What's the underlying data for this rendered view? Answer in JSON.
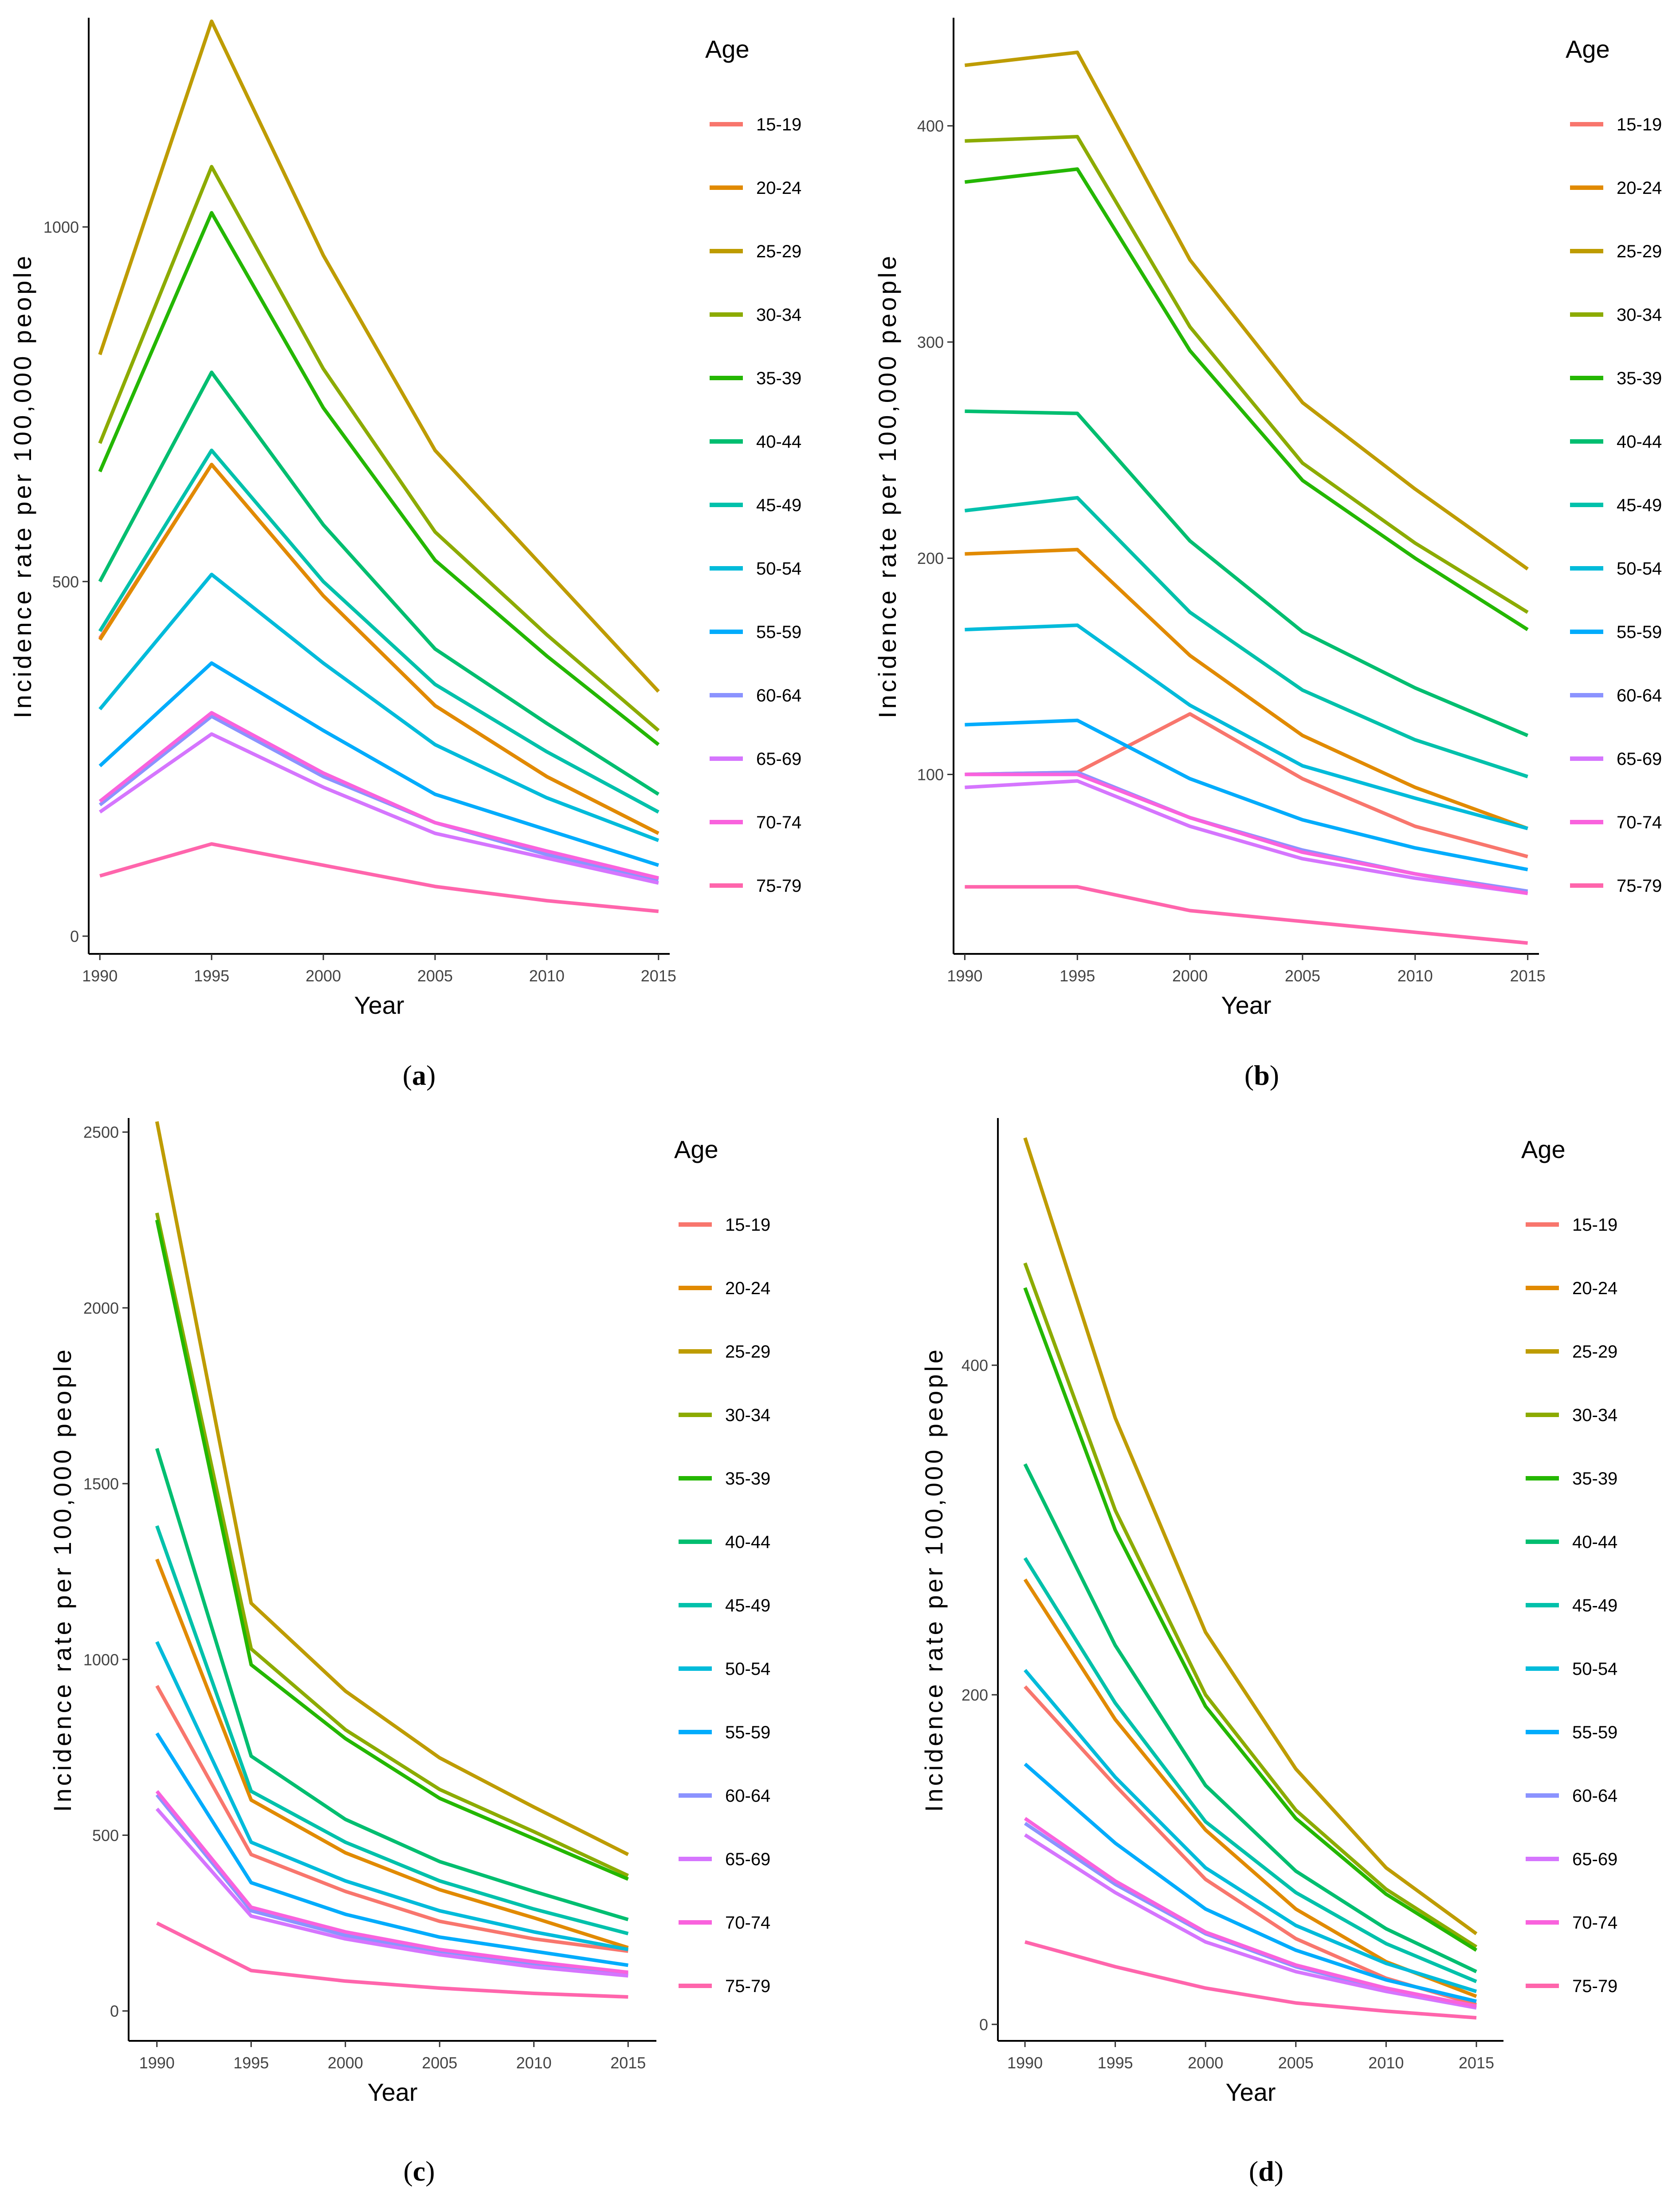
{
  "chart_data": [
    {
      "type": "line",
      "panel_label": "a",
      "xlabel": "Year",
      "ylabel": "Incidence rate per 100,000 people",
      "legend_title": "Age",
      "x": [
        1990,
        1995,
        2000,
        2005,
        2010,
        2015
      ],
      "x_ticks": [
        1990,
        1995,
        2000,
        2005,
        2010,
        2015
      ],
      "y_ticks": [
        0,
        500,
        1000
      ],
      "xlim": [
        1989.5,
        2015.5
      ],
      "ylim": [
        -25,
        1295
      ],
      "series": [
        {
          "name": "15-19",
          "values": [
            420,
            665,
            480,
            325,
            225,
            145
          ]
        },
        {
          "name": "20-24",
          "values": [
            418,
            665,
            480,
            325,
            225,
            145
          ]
        },
        {
          "name": "25-29",
          "values": [
            820,
            1290,
            960,
            685,
            515,
            345
          ]
        },
        {
          "name": "30-34",
          "values": [
            695,
            1085,
            800,
            570,
            425,
            290
          ]
        },
        {
          "name": "35-39",
          "values": [
            655,
            1020,
            745,
            530,
            395,
            270
          ]
        },
        {
          "name": "40-44",
          "values": [
            500,
            795,
            580,
            405,
            300,
            200
          ]
        },
        {
          "name": "45-49",
          "values": [
            430,
            685,
            500,
            355,
            260,
            175
          ]
        },
        {
          "name": "50-54",
          "values": [
            320,
            510,
            385,
            270,
            195,
            135
          ]
        },
        {
          "name": "55-59",
          "values": [
            240,
            385,
            290,
            200,
            150,
            100
          ]
        },
        {
          "name": "60-64",
          "values": [
            185,
            310,
            225,
            160,
            115,
            80
          ]
        },
        {
          "name": "65-69",
          "values": [
            175,
            285,
            210,
            145,
            110,
            75
          ]
        },
        {
          "name": "70-74",
          "values": [
            190,
            315,
            230,
            160,
            120,
            82
          ]
        },
        {
          "name": "75-79",
          "values": [
            85,
            130,
            100,
            70,
            50,
            35
          ]
        }
      ]
    },
    {
      "type": "line",
      "panel_label": "b",
      "xlabel": "Year",
      "ylabel": "Incidence rate per 100,000 people",
      "legend_title": "Age",
      "x": [
        1990,
        1995,
        2000,
        2005,
        2010,
        2015
      ],
      "x_ticks": [
        1990,
        1995,
        2000,
        2005,
        2010,
        2015
      ],
      "y_ticks": [
        100,
        200,
        300,
        400
      ],
      "xlim": [
        1989.5,
        2015.5
      ],
      "ylim": [
        17,
        450
      ],
      "series": [
        {
          "name": "15-19",
          "values": [
            100,
            101,
            128,
            98,
            76,
            62
          ]
        },
        {
          "name": "20-24",
          "values": [
            202,
            204,
            155,
            118,
            94,
            75
          ]
        },
        {
          "name": "25-29",
          "values": [
            428,
            434,
            338,
            272,
            232,
            195
          ]
        },
        {
          "name": "30-34",
          "values": [
            393,
            395,
            307,
            244,
            207,
            175
          ]
        },
        {
          "name": "35-39",
          "values": [
            374,
            380,
            296,
            236,
            200,
            167
          ]
        },
        {
          "name": "40-44",
          "values": [
            268,
            267,
            208,
            166,
            140,
            118
          ]
        },
        {
          "name": "45-49",
          "values": [
            222,
            228,
            175,
            139,
            116,
            99
          ]
        },
        {
          "name": "50-54",
          "values": [
            167,
            169,
            132,
            104,
            89,
            75
          ]
        },
        {
          "name": "55-59",
          "values": [
            123,
            125,
            98,
            79,
            66,
            56
          ]
        },
        {
          "name": "60-64",
          "values": [
            100,
            101,
            80,
            65,
            54,
            46
          ]
        },
        {
          "name": "65-69",
          "values": [
            94,
            97,
            76,
            61,
            52,
            45
          ]
        },
        {
          "name": "70-74",
          "values": [
            100,
            100,
            80,
            64,
            54,
            45
          ]
        },
        {
          "name": "75-79",
          "values": [
            48,
            48,
            37,
            32,
            27,
            22
          ]
        }
      ]
    },
    {
      "type": "line",
      "panel_label": "c",
      "xlabel": "Year",
      "ylabel": "Incidence rate per 100,000 people",
      "legend_title": "Age",
      "x": [
        1990,
        1995,
        2000,
        2005,
        2010,
        2015
      ],
      "x_ticks": [
        1990,
        1995,
        2000,
        2005,
        2010,
        2015
      ],
      "y_ticks": [
        0,
        500,
        1000,
        1500,
        2000,
        2500
      ],
      "xlim": [
        1988.5,
        2016.5
      ],
      "ylim": [
        -85,
        2540
      ],
      "series": [
        {
          "name": "15-19",
          "values": [
            925,
            445,
            340,
            255,
            205,
            170
          ]
        },
        {
          "name": "20-24",
          "values": [
            1285,
            600,
            450,
            345,
            265,
            180
          ]
        },
        {
          "name": "25-29",
          "values": [
            2530,
            1160,
            910,
            720,
            580,
            445
          ]
        },
        {
          "name": "30-34",
          "values": [
            2270,
            1030,
            800,
            630,
            510,
            385
          ]
        },
        {
          "name": "35-39",
          "values": [
            2250,
            985,
            775,
            605,
            490,
            375
          ]
        },
        {
          "name": "40-44",
          "values": [
            1600,
            725,
            545,
            425,
            340,
            260
          ]
        },
        {
          "name": "45-49",
          "values": [
            1380,
            625,
            480,
            370,
            290,
            220
          ]
        },
        {
          "name": "50-54",
          "values": [
            1050,
            480,
            370,
            285,
            225,
            175
          ]
        },
        {
          "name": "55-59",
          "values": [
            790,
            365,
            275,
            210,
            170,
            130
          ]
        },
        {
          "name": "60-64",
          "values": [
            615,
            285,
            215,
            170,
            135,
            105
          ]
        },
        {
          "name": "65-69",
          "values": [
            575,
            270,
            205,
            160,
            125,
            100
          ]
        },
        {
          "name": "70-74",
          "values": [
            625,
            295,
            225,
            175,
            140,
            110
          ]
        },
        {
          "name": "75-79",
          "values": [
            250,
            115,
            85,
            65,
            50,
            40
          ]
        }
      ]
    },
    {
      "type": "line",
      "panel_label": "d",
      "xlabel": "Year",
      "ylabel": "Incidence rate per 100,000 people",
      "legend_title": "Age",
      "x": [
        1990,
        1995,
        2000,
        2005,
        2010,
        2015
      ],
      "x_ticks": [
        1990,
        1995,
        2000,
        2005,
        2010,
        2015
      ],
      "y_ticks": [
        0,
        200,
        400
      ],
      "xlim": [
        1988.5,
        2016.5
      ],
      "ylim": [
        -10,
        550
      ],
      "series": [
        {
          "name": "15-19",
          "values": [
            205,
            145,
            88,
            52,
            28,
            12
          ]
        },
        {
          "name": "20-24",
          "values": [
            270,
            185,
            118,
            70,
            38,
            17
          ]
        },
        {
          "name": "25-29",
          "values": [
            538,
            368,
            238,
            155,
            95,
            55
          ]
        },
        {
          "name": "30-34",
          "values": [
            462,
            312,
            200,
            130,
            82,
            47
          ]
        },
        {
          "name": "35-39",
          "values": [
            447,
            300,
            193,
            125,
            79,
            45
          ]
        },
        {
          "name": "40-44",
          "values": [
            340,
            230,
            145,
            93,
            58,
            32
          ]
        },
        {
          "name": "45-49",
          "values": [
            283,
            195,
            123,
            80,
            49,
            26
          ]
        },
        {
          "name": "50-54",
          "values": [
            215,
            150,
            95,
            60,
            37,
            20
          ]
        },
        {
          "name": "55-59",
          "values": [
            158,
            110,
            70,
            45,
            27,
            14
          ]
        },
        {
          "name": "60-64",
          "values": [
            122,
            85,
            55,
            35,
            21,
            11
          ]
        },
        {
          "name": "65-69",
          "values": [
            115,
            80,
            50,
            32,
            20,
            10
          ]
        },
        {
          "name": "70-74",
          "values": [
            125,
            87,
            56,
            36,
            22,
            11
          ]
        },
        {
          "name": "75-79",
          "values": [
            50,
            35,
            22,
            13,
            8,
            4
          ]
        }
      ]
    }
  ],
  "colors": {
    "15-19": "#F8766D",
    "20-24": "#E18A00",
    "25-29": "#BE9C00",
    "30-34": "#8CAB00",
    "35-39": "#24B700",
    "40-44": "#00BE70",
    "45-49": "#00C1AB",
    "50-54": "#00BBDA",
    "55-59": "#00ACFC",
    "60-64": "#8B93FF",
    "65-69": "#D575FE",
    "70-74": "#F962DD",
    "75-79": "#FF65AC"
  }
}
